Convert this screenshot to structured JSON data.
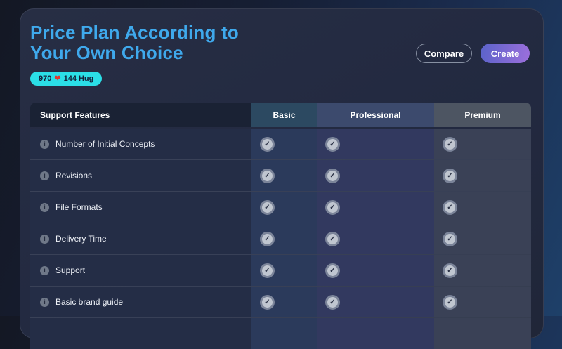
{
  "header": {
    "title_line1": "Price Plan According to",
    "title_line2": "Your Own Choice",
    "badge": {
      "likes": "970",
      "heart_icon": "❤",
      "hugs": "144 Hug"
    },
    "compare_label": "Compare",
    "create_label": "Create"
  },
  "table": {
    "feature_header": "Support Features",
    "plan_headers": [
      "Basic",
      "Professional",
      "Premium"
    ],
    "info_icon": "i",
    "check_icon": "✓",
    "rows": [
      {
        "feature": "Number of Initial Concepts",
        "basic": true,
        "professional": true,
        "premium": true
      },
      {
        "feature": "Revisions",
        "basic": true,
        "professional": true,
        "premium": true
      },
      {
        "feature": "File Formats",
        "basic": true,
        "professional": true,
        "premium": true
      },
      {
        "feature": "Delivery Time",
        "basic": true,
        "professional": true,
        "premium": true
      },
      {
        "feature": "Support",
        "basic": true,
        "professional": true,
        "premium": true
      },
      {
        "feature": "Basic brand guide",
        "basic": true,
        "professional": true,
        "premium": true
      }
    ]
  },
  "colors": {
    "title_blue": "#3fa9ec",
    "badge_cyan": "#2bdfe7",
    "heart_red": "#e3382e",
    "create_gradient_start": "#5a63c9",
    "create_gradient_end": "#9c6fdc",
    "header_basic": "#2c4961",
    "header_professional": "#3c4a6d",
    "header_premium": "#4d5562"
  }
}
